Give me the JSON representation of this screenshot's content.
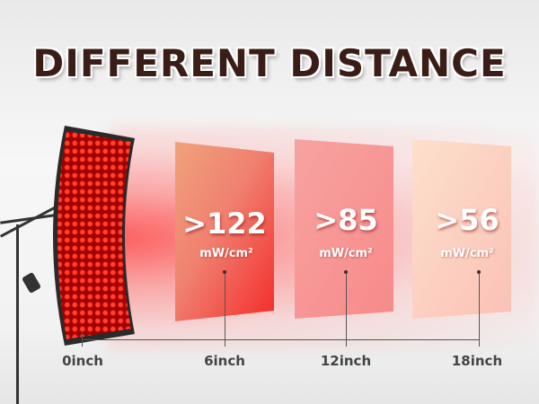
{
  "title": "DIFFERENT DISTANCE",
  "accent_color": "#e82020",
  "panels": [
    {
      "value": ">122",
      "unit": "mW/cm²",
      "distance": "6inch"
    },
    {
      "value": ">85",
      "unit": "mW/cm²",
      "distance": "12inch"
    },
    {
      "value": ">56",
      "unit": "mW/cm²",
      "distance": "18inch"
    }
  ],
  "origin_label": "0inch"
}
